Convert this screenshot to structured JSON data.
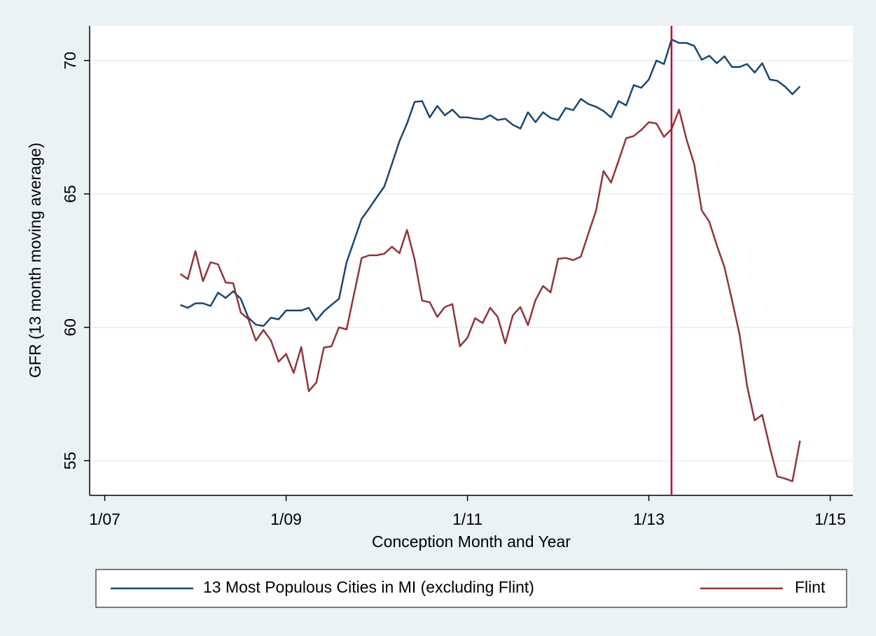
{
  "chart_data": {
    "type": "line",
    "x_label": "Conception Month and Year",
    "y_label": "GFR (13 month moving average)",
    "x": [
      "2007-11",
      "2007-12",
      "2008-01",
      "2008-02",
      "2008-03",
      "2008-04",
      "2008-05",
      "2008-06",
      "2008-07",
      "2008-08",
      "2008-09",
      "2008-10",
      "2008-11",
      "2008-12",
      "2009-01",
      "2009-02",
      "2009-03",
      "2009-04",
      "2009-05",
      "2009-06",
      "2009-07",
      "2009-08",
      "2009-09",
      "2009-10",
      "2009-11",
      "2009-12",
      "2010-01",
      "2010-02",
      "2010-03",
      "2010-04",
      "2010-05",
      "2010-06",
      "2010-07",
      "2010-08",
      "2010-09",
      "2010-10",
      "2010-11",
      "2010-12",
      "2011-01",
      "2011-02",
      "2011-03",
      "2011-04",
      "2011-05",
      "2011-06",
      "2011-07",
      "2011-08",
      "2011-09",
      "2011-10",
      "2011-11",
      "2011-12",
      "2012-01",
      "2012-02",
      "2012-03",
      "2012-04",
      "2012-05",
      "2012-06",
      "2012-07",
      "2012-08",
      "2012-09",
      "2012-10",
      "2012-11",
      "2012-12",
      "2013-01",
      "2013-02",
      "2013-03",
      "2013-04",
      "2013-05",
      "2013-06",
      "2013-07",
      "2013-08",
      "2013-09",
      "2013-10",
      "2013-11",
      "2013-12",
      "2014-01",
      "2014-02",
      "2014-03",
      "2014-04",
      "2014-05",
      "2014-06",
      "2014-07",
      "2014-08",
      "2014-09"
    ],
    "series": [
      {
        "name": "13 Most Populous Cities in MI (excluding Flint)",
        "color": "#1a476f",
        "values": [
          60.84,
          60.73,
          60.9,
          60.9,
          60.8,
          61.3,
          61.1,
          61.35,
          61.07,
          60.36,
          60.1,
          60.05,
          60.36,
          60.3,
          60.63,
          60.63,
          60.63,
          60.73,
          60.26,
          60.6,
          60.84,
          61.07,
          62.44,
          63.25,
          64.07,
          64.46,
          64.88,
          65.28,
          66.12,
          66.98,
          67.64,
          68.45,
          68.48,
          67.87,
          68.3,
          67.95,
          68.16,
          67.87,
          67.87,
          67.82,
          67.8,
          67.95,
          67.77,
          67.82,
          67.59,
          67.45,
          68.06,
          67.69,
          68.06,
          67.85,
          67.77,
          68.22,
          68.14,
          68.56,
          68.37,
          68.27,
          68.11,
          67.87,
          68.48,
          68.32,
          69.08,
          68.98,
          69.29,
          70.0,
          69.87,
          70.79,
          70.66,
          70.66,
          70.55,
          70.03,
          70.18,
          69.9,
          70.16,
          69.76,
          69.76,
          69.87,
          69.55,
          69.9,
          69.29,
          69.24,
          69.03,
          68.74,
          69.03
        ]
      },
      {
        "name": "Flint",
        "color": "#90353b",
        "values": [
          62.0,
          61.81,
          62.86,
          61.73,
          62.44,
          62.36,
          61.68,
          61.65,
          60.55,
          60.31,
          59.5,
          59.9,
          59.5,
          58.71,
          59.0,
          58.29,
          59.26,
          57.61,
          57.93,
          59.24,
          59.29,
          60.0,
          59.92,
          61.26,
          62.6,
          62.7,
          62.7,
          62.76,
          63.02,
          62.78,
          63.65,
          62.55,
          61.0,
          60.94,
          60.39,
          60.76,
          60.87,
          59.29,
          59.61,
          60.34,
          60.16,
          60.73,
          60.39,
          59.4,
          60.45,
          60.76,
          60.08,
          61.02,
          61.55,
          61.31,
          62.57,
          62.6,
          62.52,
          62.65,
          63.52,
          64.36,
          65.86,
          65.43,
          66.25,
          67.09,
          67.17,
          67.4,
          67.69,
          67.64,
          67.14,
          67.43,
          68.16,
          67.03,
          66.12,
          64.38,
          63.96,
          63.07,
          62.26,
          61.02,
          59.74,
          57.8,
          56.51,
          56.72,
          55.51,
          54.41,
          54.33,
          54.23,
          55.75
        ]
      }
    ],
    "xlim": [
      "2006-11",
      "2015-04"
    ],
    "xticks": [
      {
        "value": "2007-01",
        "label": "1/07"
      },
      {
        "value": "2009-01",
        "label": "1/09"
      },
      {
        "value": "2011-01",
        "label": "1/11"
      },
      {
        "value": "2013-01",
        "label": "1/13"
      },
      {
        "value": "2015-01",
        "label": "1/15"
      }
    ],
    "ylim": [
      53.7,
      71.3
    ],
    "yticks": [
      55,
      60,
      65,
      70
    ],
    "grid": true,
    "vline": {
      "x": "2013-04",
      "color": "#c10534"
    },
    "legend": "bottom"
  }
}
